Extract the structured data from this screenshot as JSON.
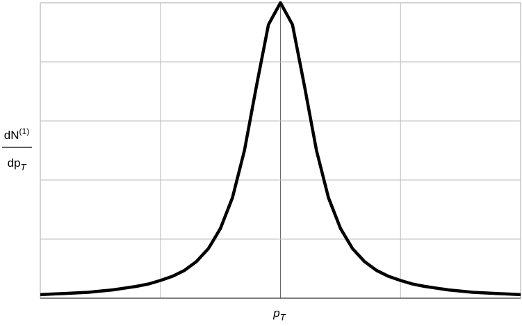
{
  "chart_data": {
    "type": "line",
    "xlabel": "p",
    "xlabel_sub": "T",
    "ylabel_numerator": "dN",
    "ylabel_numerator_sup": "(1)",
    "ylabel_denominator": "dp",
    "ylabel_denominator_sub": "T",
    "x": [
      -2,
      -1.9,
      -1.8,
      -1.7,
      -1.6,
      -1.5,
      -1.4,
      -1.3,
      -1.2,
      -1.1,
      -1,
      -0.9,
      -0.8,
      -0.7,
      -0.6,
      -0.5,
      -0.4,
      -0.3,
      -0.2,
      -0.1,
      0,
      0.1,
      0.2,
      0.3,
      0.4,
      0.5,
      0.6,
      0.7,
      0.8,
      0.9,
      1,
      1.1,
      1.2,
      1.3,
      1.4,
      1.5,
      1.6,
      1.7,
      1.8,
      1.9,
      2
    ],
    "series": [
      {
        "color": "#000000",
        "values": [
          0.06,
          0.07,
          0.08,
          0.09,
          0.1,
          0.12,
          0.14,
          0.17,
          0.2,
          0.24,
          0.3,
          0.37,
          0.47,
          0.62,
          0.84,
          1.18,
          1.7,
          2.5,
          3.59,
          4.63,
          5,
          4.63,
          3.59,
          2.5,
          1.7,
          1.18,
          0.84,
          0.62,
          0.47,
          0.37,
          0.3,
          0.24,
          0.2,
          0.17,
          0.14,
          0.12,
          0.1,
          0.09,
          0.08,
          0.07,
          0.06
        ]
      }
    ],
    "xlim": [
      -2,
      2
    ],
    "xticks": [
      -1,
      0,
      1
    ],
    "ylim": [
      0,
      5
    ],
    "yticks": [
      1,
      2,
      3,
      4
    ],
    "grid": true
  }
}
